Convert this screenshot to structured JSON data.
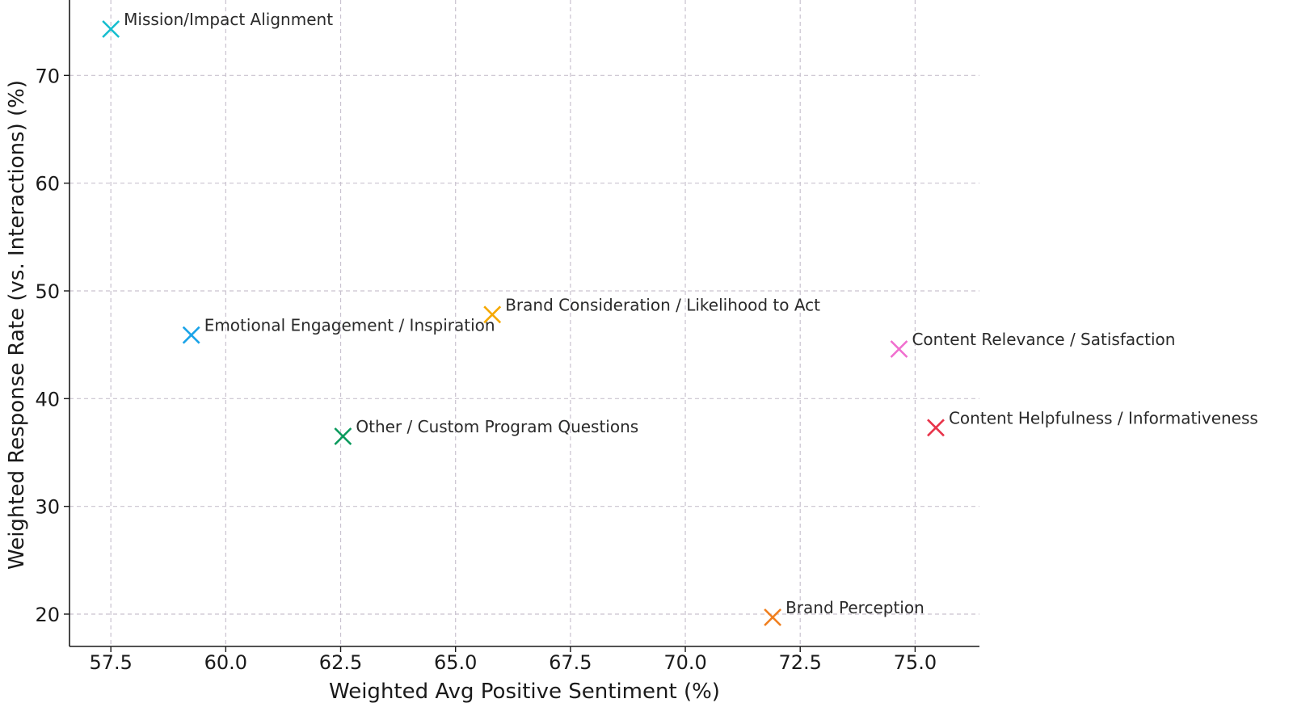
{
  "chart_data": {
    "type": "scatter",
    "title": "",
    "xlabel": "Weighted Avg Positive Sentiment (%)",
    "ylabel": "Weighted Response Rate (vs. Interactions) (%)",
    "xlim": [
      56.6,
      76.4
    ],
    "ylim": [
      17,
      77
    ],
    "xticks": [
      "57.5",
      "60.0",
      "62.5",
      "65.0",
      "67.5",
      "70.0",
      "72.5",
      "75.0"
    ],
    "yticks": [
      "20",
      "30",
      "40",
      "50",
      "60",
      "70"
    ],
    "grid": true,
    "marker": "x",
    "points": [
      {
        "label": "Mission/Impact Alignment",
        "x": 57.5,
        "y": 74.3,
        "color": "#17becf"
      },
      {
        "label": "Emotional Engagement / Inspiration",
        "x": 59.25,
        "y": 45.9,
        "color": "#1aa3e8"
      },
      {
        "label": "Other / Custom Program Questions",
        "x": 62.55,
        "y": 36.5,
        "color": "#0a9a5c"
      },
      {
        "label": "Brand Consideration / Likelihood to Act",
        "x": 65.8,
        "y": 47.8,
        "color": "#f5a800"
      },
      {
        "label": "Brand Perception",
        "x": 71.9,
        "y": 19.7,
        "color": "#f07f1f"
      },
      {
        "label": "Content Relevance / Satisfaction",
        "x": 74.65,
        "y": 44.6,
        "color": "#f06fcf"
      },
      {
        "label": "Content Helpfulness / Informativeness",
        "x": 75.45,
        "y": 37.3,
        "color": "#e8344a"
      }
    ]
  }
}
